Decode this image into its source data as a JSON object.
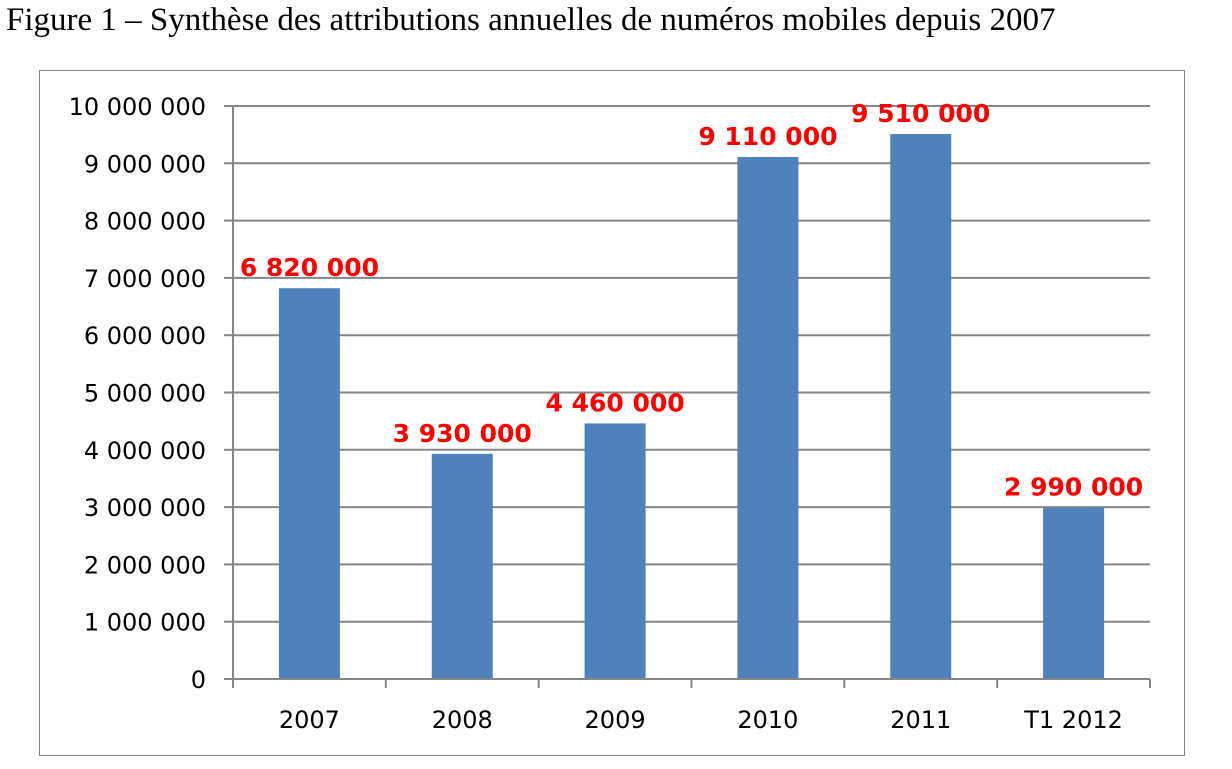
{
  "figure": {
    "title": "Figure 1 – Synthèse des attributions annuelles de numéros mobiles depuis 2007"
  },
  "chart_data": {
    "type": "bar",
    "title": "",
    "xlabel": "",
    "ylabel": "",
    "categories": [
      "2007",
      "2008",
      "2009",
      "2010",
      "2011",
      "T1 2012"
    ],
    "values": [
      6820000,
      3930000,
      4460000,
      9110000,
      9510000,
      2990000
    ],
    "data_labels": [
      "6 820 000",
      "3 930 000",
      "4 460 000",
      "9 110 000",
      "9 510 000",
      "2 990 000"
    ],
    "ylim": [
      0,
      10000000
    ],
    "yticks": [
      0,
      1000000,
      2000000,
      3000000,
      4000000,
      5000000,
      6000000,
      7000000,
      8000000,
      9000000,
      10000000
    ],
    "ytick_labels": [
      "0",
      "1 000 000",
      "2 000 000",
      "3 000 000",
      "4 000 000",
      "5 000 000",
      "6 000 000",
      "7 000 000",
      "8 000 000",
      "9 000 000",
      "10 000 000"
    ],
    "grid": true,
    "legend": "none",
    "colors": {
      "bar": "#4f81bd",
      "data_label": "#ff0000",
      "grid": "#868686",
      "axis": "#868686"
    }
  }
}
